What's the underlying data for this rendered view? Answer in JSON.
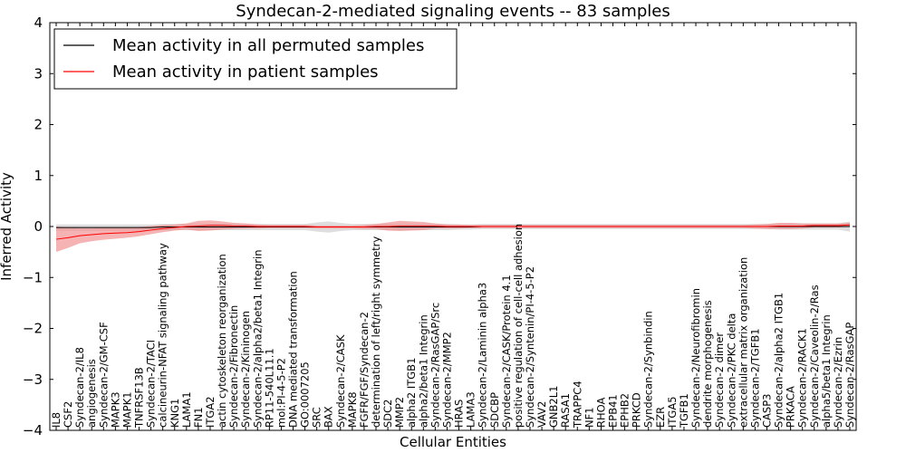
{
  "chart_data": {
    "type": "line",
    "title": "Syndecan-2-mediated signaling events -- 83 samples",
    "xlabel": "Cellular Entities",
    "ylabel": "Inferred Activity",
    "ylim": [
      -4,
      4
    ],
    "yticks": [
      "4",
      "3",
      "2",
      "1",
      "0",
      "−1",
      "−2",
      "−3",
      "−4"
    ],
    "legend_position": "top-left",
    "categories": [
      "IL8",
      "CSF2",
      "Syndecan-2/IL8",
      "angiogenesis",
      "Syndecan-2/GM-CSF",
      "MAPK3",
      "MAPK1",
      "TNFRSF13B",
      "Syndecan-2/TACI",
      "calcineurin-NFAT signaling pathway",
      "KNG1",
      "LAMA1",
      "FN1",
      "ITGA2",
      "actin cytoskeleton reorganization",
      "Syndecan-2/Fibronectin",
      "Syndecan-2/Kininogen",
      "Syndecan-2/alpha2/beta1 Integrin",
      "RP11-540L11.1",
      "mol:PI-4-5-P2",
      "DNA mediated transformation",
      "GO:0007205",
      "SRC",
      "BAX",
      "Syndecan-2/CASK",
      "MAPK8",
      "FGFR/FGF/Syndecan-2",
      "determination of left/right symmetry",
      "SDC2",
      "MMP2",
      "alpha2 ITGB1",
      "alpha2/beta1 Integrin",
      "Syndecan-2/RasGAP/Src",
      "Syndecan-2/MMP2",
      "HRAS",
      "LAMA3",
      "Syndecan-2/Laminin alpha3",
      "SDCBP",
      "Syndecan-2/CASK/Protein 4.1",
      "positive regulation of cell-cell adhesion",
      "Syndecan-2/Syntenin/PI-4-5-P2",
      "VAV2",
      "GNB2L1",
      "RASA1",
      "TRAPPC4",
      "NF1",
      "RHOA",
      "EPB41",
      "EPHB2",
      "PRKCD",
      "Syndecan-2/Synbindin",
      "EZR",
      "ITGA5",
      "TGFB1",
      "Syndecan-2/Neurofibromin",
      "dendrite morphogenesis",
      "Syndecan-2 dimer",
      "Syndecan-2/PKC delta",
      "extracellular matrix organization",
      "Syndecan-2/TGFB1",
      "CASP3",
      "Syndecan-2/alpha2 ITGB1",
      "PRKACA",
      "Syndecan-2/RACK1",
      "Syndecan-2/Caveolin-2/Ras",
      "alpha5/beta1 Integrin",
      "Syndecan-2/Ezrin",
      "Syndecan-2/RasGAP"
    ],
    "series": [
      {
        "name": "Mean activity in all permuted samples",
        "color": "#000000",
        "band_color": "#c8c8c8",
        "values": [
          -0.02,
          -0.02,
          -0.02,
          -0.02,
          -0.02,
          -0.02,
          -0.02,
          -0.02,
          -0.02,
          -0.01,
          -0.01,
          -0.01,
          -0.01,
          -0.01,
          -0.01,
          -0.01,
          -0.01,
          -0.01,
          -0.01,
          -0.01,
          -0.01,
          -0.01,
          -0.01,
          -0.01,
          -0.01,
          -0.01,
          -0.01,
          -0.01,
          -0.01,
          -0.01,
          -0.01,
          -0.01,
          -0.01,
          -0.01,
          -0.01,
          -0.01,
          0,
          0,
          0,
          0,
          0,
          0,
          0,
          0,
          0,
          0,
          0,
          0,
          0,
          0,
          0,
          0,
          0,
          0,
          0,
          0,
          0,
          0,
          0,
          0,
          0,
          0,
          0,
          0,
          0,
          0,
          0,
          0
        ],
        "band": [
          0.06,
          0.06,
          0.06,
          0.06,
          0.06,
          0.06,
          0.06,
          0.06,
          0.06,
          0.06,
          0.06,
          0.06,
          0.06,
          0.06,
          0.06,
          0.06,
          0.06,
          0.06,
          0.06,
          0.06,
          0.06,
          0.06,
          0.09,
          0.11,
          0.08,
          0.06,
          0.06,
          0.06,
          0.06,
          0.06,
          0.06,
          0.06,
          0.06,
          0.06,
          0.05,
          0.05,
          0.05,
          0.05,
          0.05,
          0.05,
          0.05,
          0.05,
          0.05,
          0.05,
          0.05,
          0.05,
          0.05,
          0.05,
          0.05,
          0.05,
          0.05,
          0.05,
          0.05,
          0.05,
          0.05,
          0.05,
          0.05,
          0.05,
          0.05,
          0.05,
          0.05,
          0.06,
          0.06,
          0.06,
          0.06,
          0.06,
          0.06,
          0.1
        ]
      },
      {
        "name": "Mean activity in patient samples",
        "color": "#ff0000",
        "band_color": "#f08080",
        "values": [
          -0.25,
          -0.22,
          -0.18,
          -0.16,
          -0.14,
          -0.13,
          -0.12,
          -0.1,
          -0.07,
          -0.04,
          -0.02,
          0,
          0.01,
          0.02,
          0.02,
          0.01,
          0.01,
          0,
          0,
          0,
          0,
          0,
          -0.01,
          -0.01,
          -0.01,
          -0.01,
          -0.01,
          0,
          0,
          0.01,
          0.01,
          0.01,
          0.01,
          0,
          0,
          0,
          0,
          0,
          0,
          0,
          0,
          0,
          0,
          0,
          0,
          0,
          0,
          0,
          0,
          0,
          0,
          0,
          0,
          0,
          0,
          0,
          0,
          0,
          0,
          0,
          0,
          0.01,
          0.01,
          0.01,
          0.02,
          0.02,
          0.02,
          0.03
        ],
        "band": [
          0.25,
          0.2,
          0.15,
          0.13,
          0.12,
          0.11,
          0.1,
          0.09,
          0.08,
          0.07,
          0.06,
          0.06,
          0.1,
          0.1,
          0.08,
          0.06,
          0.05,
          0.04,
          0.03,
          0.03,
          0.03,
          0.03,
          0.03,
          0.03,
          0.03,
          0.03,
          0.04,
          0.05,
          0.08,
          0.1,
          0.09,
          0.08,
          0.05,
          0.04,
          0.04,
          0.03,
          0.03,
          0.03,
          0.03,
          0.03,
          0.03,
          0.03,
          0.03,
          0.03,
          0.03,
          0.03,
          0.03,
          0.03,
          0.03,
          0.03,
          0.03,
          0.03,
          0.03,
          0.03,
          0.03,
          0.03,
          0.03,
          0.03,
          0.03,
          0.04,
          0.05,
          0.06,
          0.06,
          0.05,
          0.04,
          0.04,
          0.04,
          0.04
        ]
      }
    ]
  }
}
